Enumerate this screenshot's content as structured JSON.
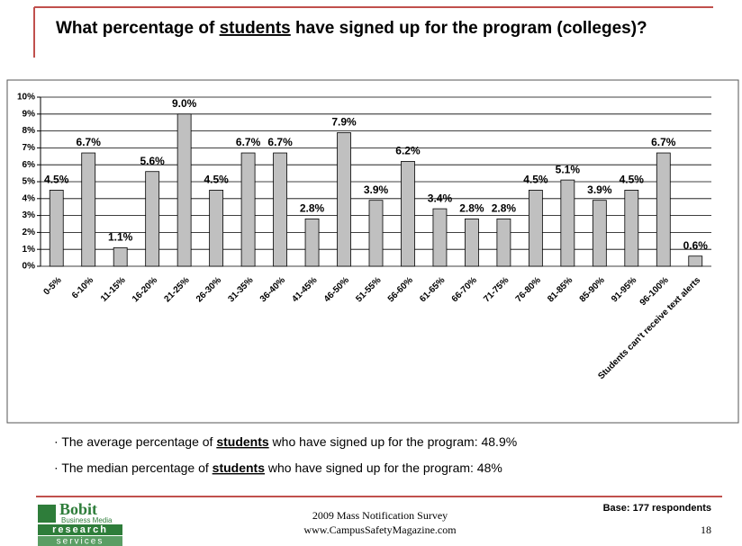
{
  "slide": {
    "title": [
      "What percentage of ",
      "students",
      " have signed up for the program (colleges)?"
    ],
    "bullets": [
      [
        "The average percentage of ",
        "students",
        " who have signed up for the program: 48.9%"
      ],
      [
        "The median percentage of ",
        "students",
        " who have signed up for the program: 48%"
      ]
    ],
    "footer": {
      "survey": "2009 Mass Notification Survey",
      "site": "www.CampusSafetyMagazine.com",
      "base": "Base: 177 respondents",
      "page": "18",
      "logo": [
        "Bobit",
        "Business Media",
        "research",
        "services"
      ]
    }
  },
  "chart_data": {
    "type": "bar",
    "categories": [
      "0-5%",
      "6-10%",
      "11-15%",
      "16-20%",
      "21-25%",
      "26-30%",
      "31-35%",
      "36-40%",
      "41-45%",
      "46-50%",
      "51-55%",
      "56-60%",
      "61-65%",
      "66-70%",
      "71-75%",
      "76-80%",
      "81-85%",
      "85-90%",
      "91-95%",
      "96-100%",
      "Students can't receive text alerts"
    ],
    "values": [
      4.5,
      6.7,
      1.1,
      5.6,
      9.0,
      4.5,
      6.7,
      6.7,
      2.8,
      7.9,
      3.9,
      6.2,
      3.4,
      2.8,
      2.8,
      4.5,
      5.1,
      3.9,
      4.5,
      6.7,
      0.6
    ],
    "value_labels": [
      "4.5%",
      "6.7%",
      "1.1%",
      "5.6%",
      "9.0%",
      "4.5%",
      "6.7%",
      "6.7%",
      "2.8%",
      "7.9%",
      "3.9%",
      "6.2%",
      "3.4%",
      "2.8%",
      "2.8%",
      "4.5%",
      "5.1%",
      "3.9%",
      "4.5%",
      "6.7%",
      "0.6%"
    ],
    "color": "#c0c0c0",
    "ylim": [
      0,
      10
    ],
    "yticks": [
      {
        "value": 0,
        "label": "0%"
      },
      {
        "value": 1,
        "label": "1%"
      },
      {
        "value": 2,
        "label": "2%"
      },
      {
        "value": 3,
        "label": "3%"
      },
      {
        "value": 4,
        "label": "4%"
      },
      {
        "value": 5,
        "label": "5%"
      },
      {
        "value": 6,
        "label": "6%"
      },
      {
        "value": 7,
        "label": "7%"
      },
      {
        "value": 8,
        "label": "8%"
      },
      {
        "value": 9,
        "label": "9%"
      },
      {
        "value": 10,
        "label": "10%"
      }
    ],
    "grid": true
  }
}
